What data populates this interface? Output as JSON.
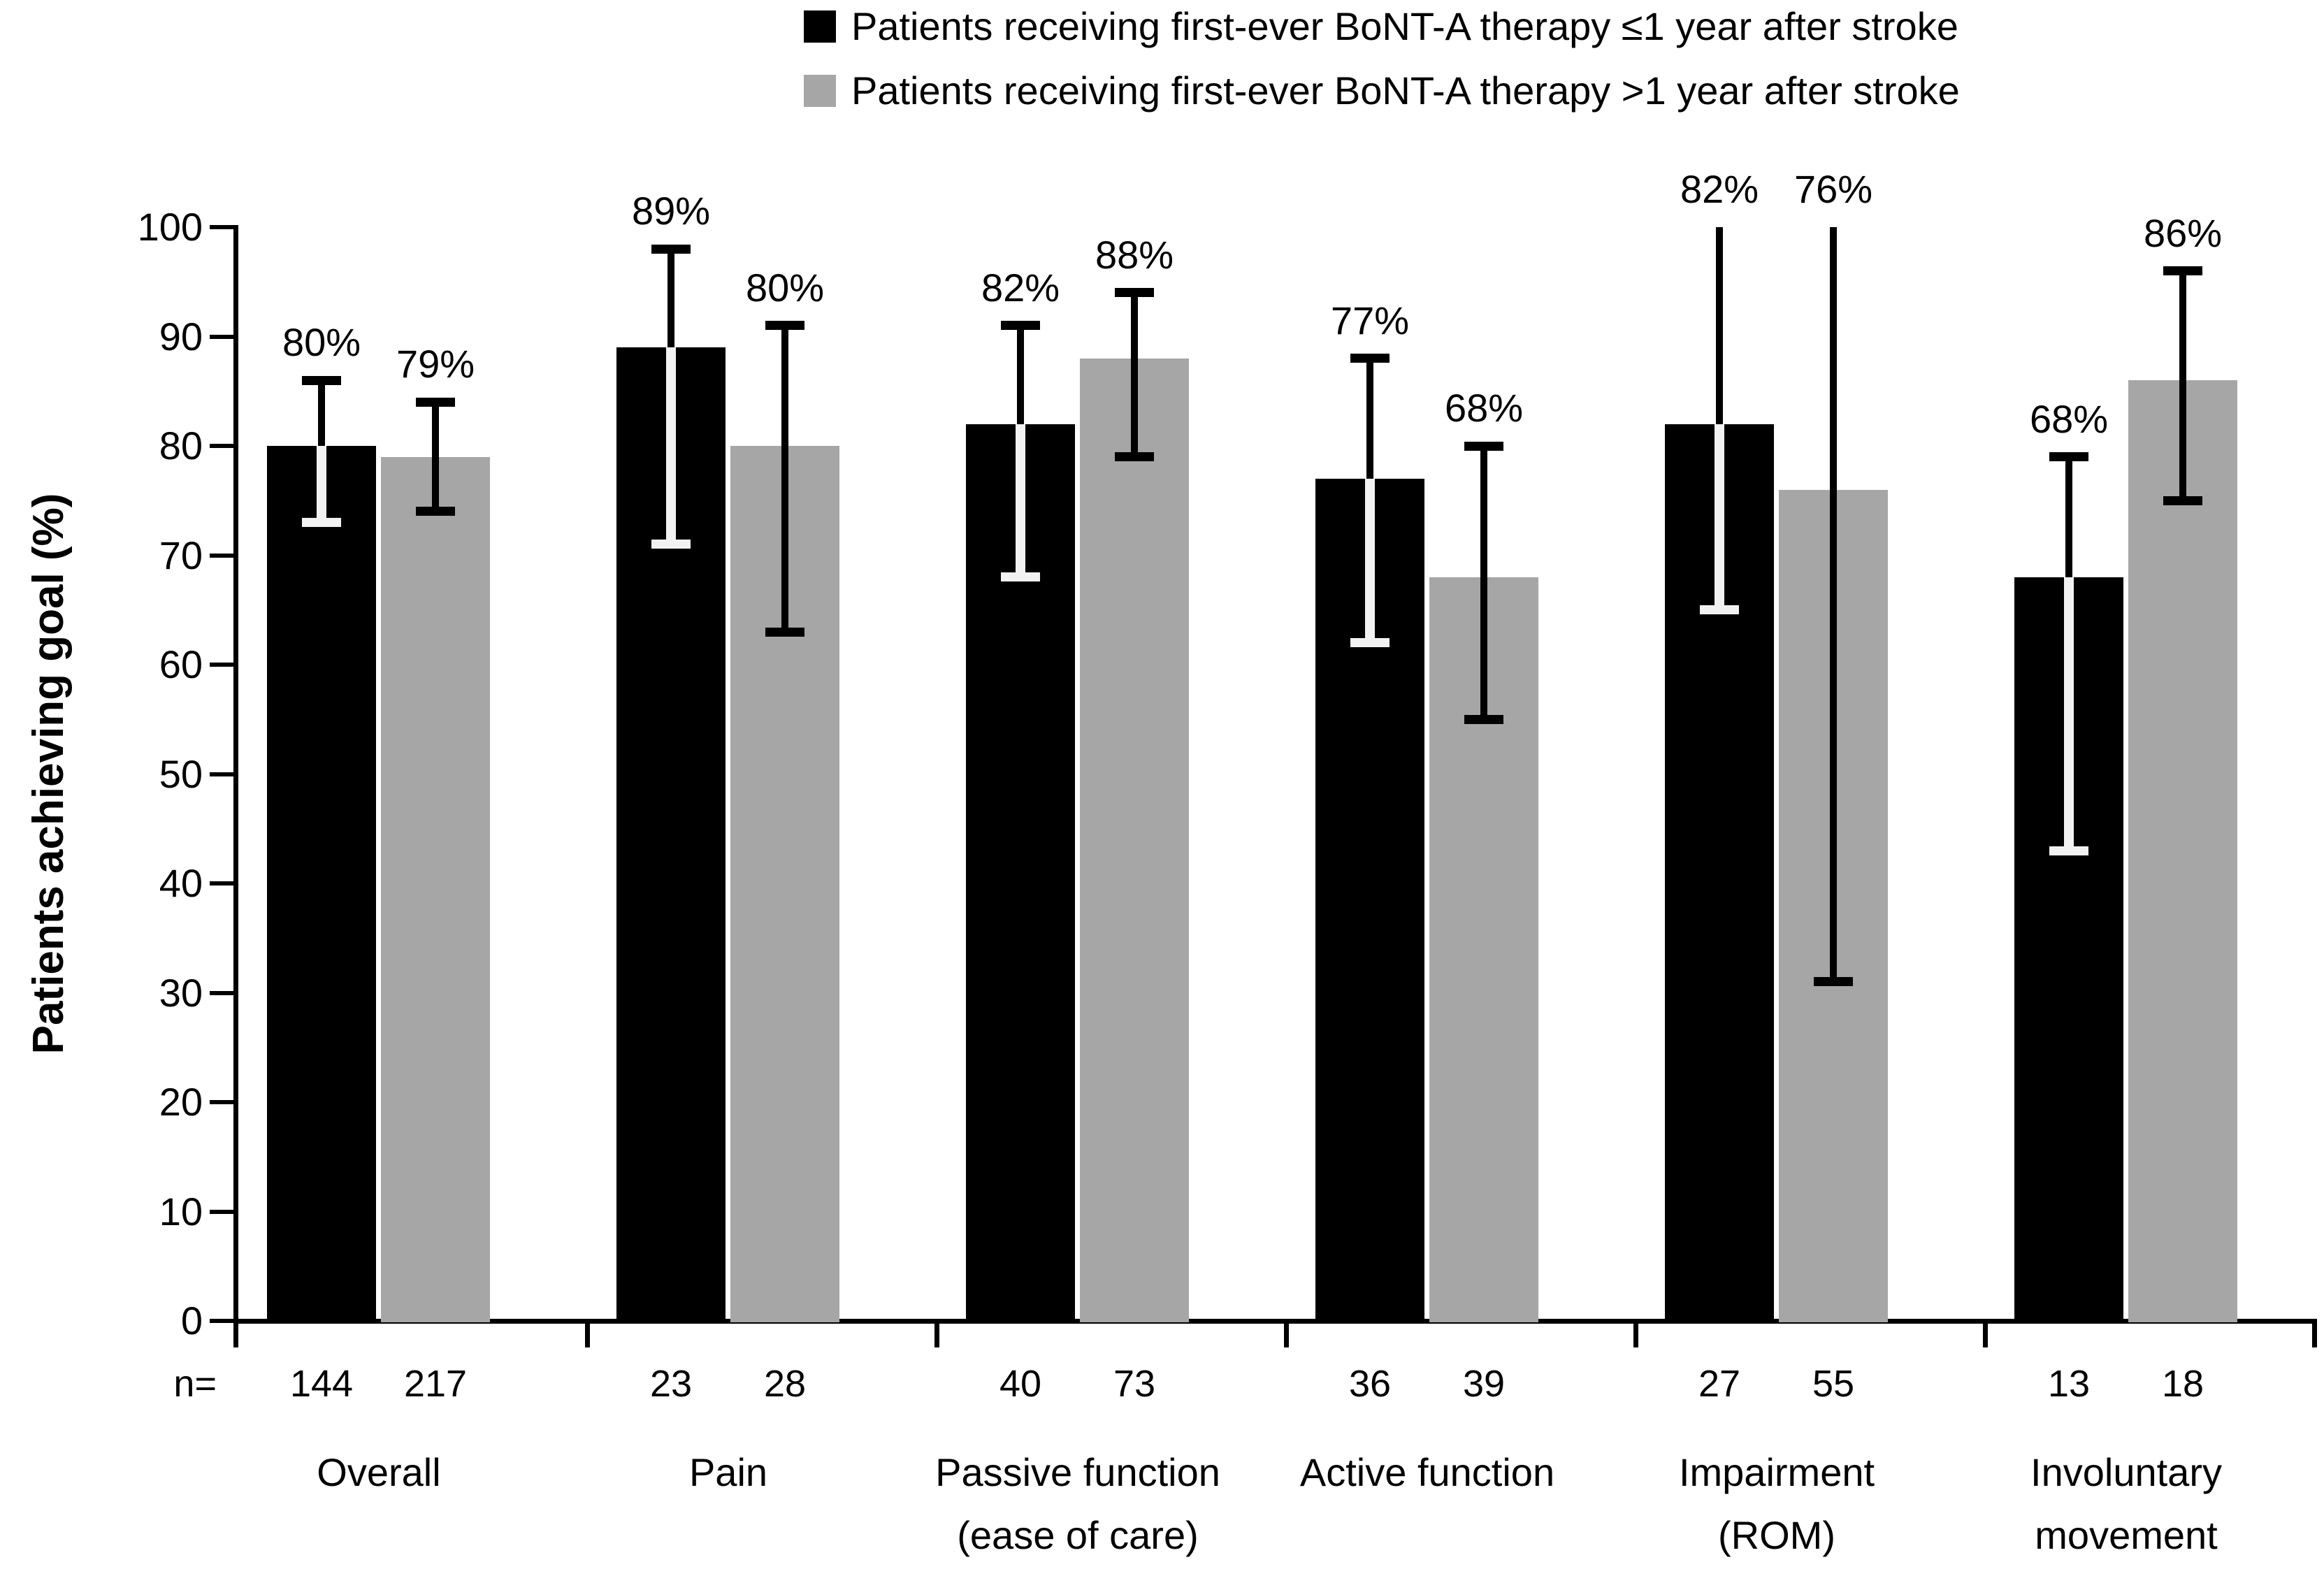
{
  "legend": {
    "items": [
      {
        "label": "Patients receiving first-ever BoNT-A therapy ≤1 year after stroke",
        "color": "#000000"
      },
      {
        "label": "Patients receiving first-ever BoNT-A therapy >1 year after stroke",
        "color": "#a6a6a6"
      }
    ]
  },
  "y_axis": {
    "title": "Patients achieving goal (%)",
    "tick_labels": [
      "0",
      "10",
      "20",
      "30",
      "40",
      "50",
      "60",
      "70",
      "80",
      "90",
      "100"
    ]
  },
  "n_row": {
    "prefix": "n="
  },
  "chart_data": {
    "type": "bar",
    "title": "",
    "xlabel": "",
    "ylabel": "Patients achieving goal (%)",
    "ylim": [
      0,
      100
    ],
    "grid": false,
    "legend_position": "top",
    "error_bars": true,
    "categories": [
      {
        "slug": "overall",
        "lines": [
          "Overall"
        ]
      },
      {
        "slug": "pain",
        "lines": [
          "Pain"
        ]
      },
      {
        "slug": "passive-function",
        "lines": [
          "Passive function",
          "(ease of care)"
        ]
      },
      {
        "slug": "active-function",
        "lines": [
          "Active function"
        ]
      },
      {
        "slug": "impairment-rom",
        "lines": [
          "Impairment",
          "(ROM)"
        ]
      },
      {
        "slug": "involuntary-movement",
        "lines": [
          "Involuntary",
          "movement"
        ]
      }
    ],
    "series": [
      {
        "name": "Patients receiving first-ever BoNT-A therapy ≤1 year after stroke",
        "color": "#000000",
        "values": [
          80,
          89,
          82,
          77,
          82,
          68
        ],
        "labels": [
          "80%",
          "89%",
          "82%",
          "77%",
          "82%",
          "68%"
        ],
        "err_low": [
          73,
          71,
          68,
          62,
          65,
          43
        ],
        "err_high": [
          86,
          98,
          91,
          88,
          100,
          79
        ],
        "n": [
          144,
          23,
          40,
          36,
          27,
          13
        ]
      },
      {
        "name": "Patients receiving first-ever BoNT-A therapy >1 year after stroke",
        "color": "#a6a6a6",
        "values": [
          79,
          80,
          88,
          68,
          76,
          86
        ],
        "labels": [
          "79%",
          "80%",
          "88%",
          "68%",
          "76%",
          "86%"
        ],
        "err_low": [
          74,
          63,
          79,
          55,
          31,
          75
        ],
        "err_high": [
          84,
          91,
          94,
          80,
          100,
          96
        ],
        "n": [
          217,
          28,
          73,
          39,
          55,
          18
        ]
      }
    ],
    "colors": {
      "series1": "#000000",
      "series2": "#a6a6a6",
      "inner_whisker": "#f2f2f2",
      "axis": "#000000"
    }
  }
}
